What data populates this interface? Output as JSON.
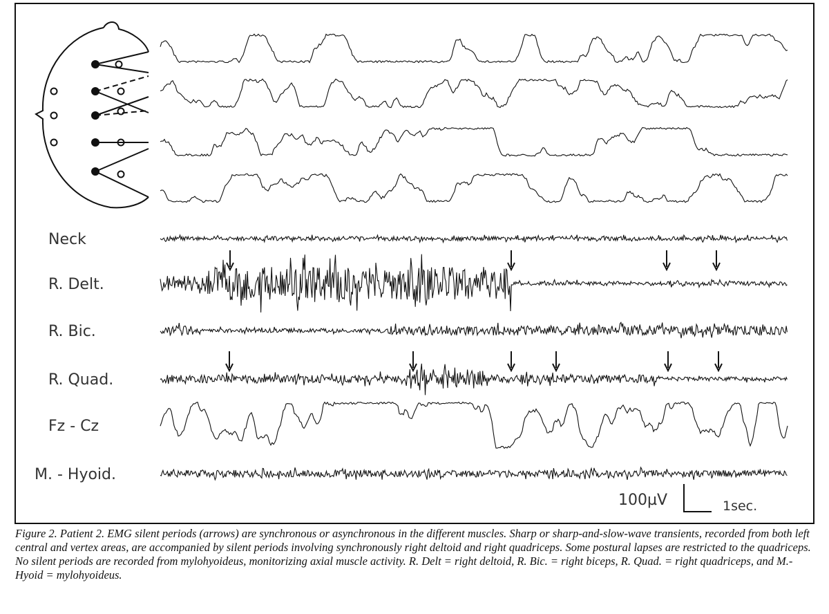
{
  "figure": {
    "channels": [
      "Neck",
      "R. Delt.",
      "R. Bic.",
      "R. Quad.",
      "Fz - Cz",
      "M. - Hyoid."
    ],
    "scale": {
      "amplitude": "100µV",
      "time": "1sec."
    }
  },
  "caption": "Figure 2. Patient 2. EMG silent periods (arrows) are synchronous or asynchronous in the different muscles. Sharp or sharp-and-slow-wave transients, recorded from both left central and vertex areas, are accompanied by silent periods involving synchronously right deltoid and right quadriceps. Some postural lapses are restricted to the quadriceps. No silent periods are recorded from mylohyoideus, monitorizing axial muscle activity. R. Delt = right deltoid, R. Bic. = right biceps, R. Quad. = right quadriceps, and M.-Hyoid = mylohyoideus."
}
